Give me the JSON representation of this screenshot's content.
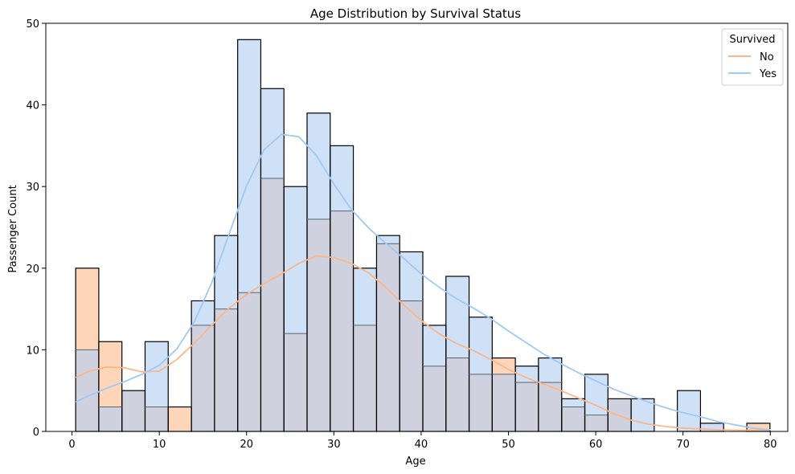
{
  "chart_data": {
    "type": "bar",
    "title": "Age Distribution by Survival Status",
    "xlabel": "Age",
    "ylabel": "Passenger Count",
    "xlim": [
      -3,
      82
    ],
    "ylim": [
      0,
      50
    ],
    "xticks": [
      0,
      10,
      20,
      30,
      40,
      50,
      60,
      70,
      80
    ],
    "yticks": [
      0,
      10,
      20,
      30,
      40,
      50
    ],
    "bin_edges": [
      0.42,
      3.07,
      5.72,
      8.37,
      11.02,
      13.68,
      16.33,
      18.98,
      21.63,
      24.28,
      26.93,
      29.58,
      32.23,
      34.89,
      37.54,
      40.19,
      42.84,
      45.49,
      48.14,
      50.79,
      53.44,
      56.1,
      58.75,
      61.4,
      64.05,
      66.7,
      69.35,
      72.0,
      74.65,
      77.31,
      79.96
    ],
    "grid": false,
    "legend": {
      "title": "Survived",
      "placement": "top-right"
    },
    "series": [
      {
        "name": "No",
        "color": "#fdb68a",
        "fill": "#fdd6b9",
        "counts": [
          20,
          11,
          5,
          3,
          3,
          13,
          15,
          17,
          31,
          12,
          26,
          27,
          13,
          23,
          16,
          8,
          9,
          7,
          9,
          6,
          6,
          3,
          2,
          4,
          0,
          0,
          0,
          0,
          0,
          1
        ],
        "kde": [
          [
            0.42,
            6.6
          ],
          [
            2,
            7.4
          ],
          [
            4,
            7.9
          ],
          [
            6,
            7.8
          ],
          [
            8,
            7.3
          ],
          [
            10,
            7.4
          ],
          [
            12,
            8.8
          ],
          [
            14,
            10.8
          ],
          [
            16,
            13.0
          ],
          [
            18,
            15.1
          ],
          [
            20,
            16.8
          ],
          [
            22,
            18.1
          ],
          [
            24,
            19.3
          ],
          [
            26,
            20.6
          ],
          [
            28,
            21.5
          ],
          [
            30,
            21.3
          ],
          [
            32,
            20.6
          ],
          [
            34,
            19.4
          ],
          [
            36,
            17.6
          ],
          [
            38,
            15.5
          ],
          [
            40,
            13.6
          ],
          [
            42,
            12.0
          ],
          [
            44,
            10.8
          ],
          [
            46,
            9.9
          ],
          [
            48,
            8.8
          ],
          [
            50,
            7.6
          ],
          [
            52,
            6.6
          ],
          [
            54,
            5.8
          ],
          [
            56,
            5.0
          ],
          [
            58,
            4.1
          ],
          [
            60,
            3.2
          ],
          [
            62,
            2.2
          ],
          [
            64,
            1.4
          ],
          [
            66,
            0.9
          ],
          [
            68,
            0.6
          ],
          [
            70,
            0.4
          ],
          [
            72,
            0.3
          ],
          [
            74,
            0.2
          ],
          [
            76,
            0.15
          ],
          [
            78,
            0.15
          ],
          [
            80,
            0.2
          ]
        ]
      },
      {
        "name": "Yes",
        "color": "#a1c9f4",
        "fill": "#cfe1f6",
        "counts": [
          10,
          3,
          5,
          11,
          0,
          16,
          24,
          48,
          42,
          30,
          39,
          35,
          20,
          24,
          22,
          13,
          19,
          14,
          7,
          8,
          9,
          4,
          7,
          4,
          4,
          0,
          5,
          1,
          0,
          0
        ],
        "kde": [
          [
            0.42,
            3.6
          ],
          [
            2,
            4.4
          ],
          [
            4,
            5.3
          ],
          [
            6,
            6.1
          ],
          [
            8,
            7.0
          ],
          [
            10,
            8.1
          ],
          [
            12,
            10.1
          ],
          [
            14,
            13.4
          ],
          [
            16,
            18.2
          ],
          [
            18,
            24.2
          ],
          [
            20,
            30.1
          ],
          [
            22,
            34.5
          ],
          [
            24,
            36.4
          ],
          [
            26,
            36.1
          ],
          [
            28,
            33.8
          ],
          [
            30,
            30.3
          ],
          [
            32,
            27.2
          ],
          [
            34,
            24.9
          ],
          [
            36,
            23.0
          ],
          [
            38,
            21.2
          ],
          [
            40,
            19.3
          ],
          [
            42,
            17.7
          ],
          [
            44,
            16.3
          ],
          [
            46,
            15.1
          ],
          [
            48,
            13.8
          ],
          [
            50,
            12.3
          ],
          [
            52,
            10.9
          ],
          [
            54,
            9.5
          ],
          [
            56,
            8.3
          ],
          [
            58,
            7.2
          ],
          [
            60,
            6.2
          ],
          [
            62,
            5.2
          ],
          [
            64,
            4.4
          ],
          [
            66,
            3.6
          ],
          [
            68,
            2.9
          ],
          [
            70,
            2.3
          ],
          [
            72,
            1.8
          ],
          [
            74,
            1.2
          ],
          [
            76,
            0.8
          ],
          [
            78,
            0.4
          ],
          [
            80,
            0.2
          ]
        ]
      }
    ],
    "overlap_fill": "#cfd1de"
  }
}
